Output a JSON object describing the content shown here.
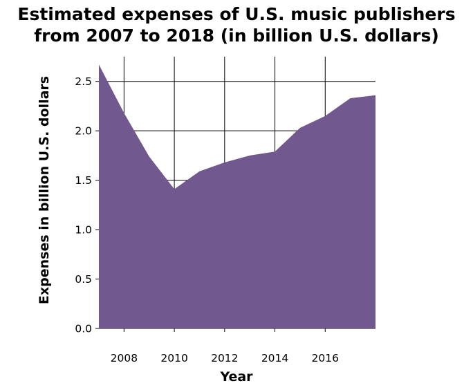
{
  "chart_data": {
    "type": "area",
    "title": "Estimated expenses of U.S. music publishers from 2007 to 2018 (in billion U.S. dollars)",
    "title_lines": [
      "Estimated expenses of U.S. music publishers",
      "from 2007 to 2018 (in billion U.S. dollars)"
    ],
    "xlabel": "Year",
    "ylabel": "Expenses in billion U.S. dollars",
    "x": [
      2007,
      2008,
      2009,
      2010,
      2011,
      2012,
      2013,
      2014,
      2015,
      2016,
      2017,
      2018
    ],
    "series": [
      {
        "values": [
          2.67,
          2.18,
          1.74,
          1.41,
          1.59,
          1.68,
          1.75,
          1.79,
          2.03,
          2.15,
          2.33,
          2.36
        ]
      }
    ],
    "xlim": [
      2007,
      2018
    ],
    "ylim": [
      0,
      2.75
    ],
    "x_ticks": [
      2008,
      2010,
      2012,
      2014,
      2016
    ],
    "x_tick_labels": [
      "2008",
      "2010",
      "2012",
      "2014",
      "2016"
    ],
    "y_ticks": [
      0,
      0.5,
      1,
      1.5,
      2,
      2.5
    ],
    "y_tick_labels": [
      "0.0",
      "0.5",
      "1.0",
      "1.5",
      "2.0",
      "2.5"
    ],
    "grid": true,
    "fill_color": "#71588f",
    "grid_color": "#000000"
  }
}
